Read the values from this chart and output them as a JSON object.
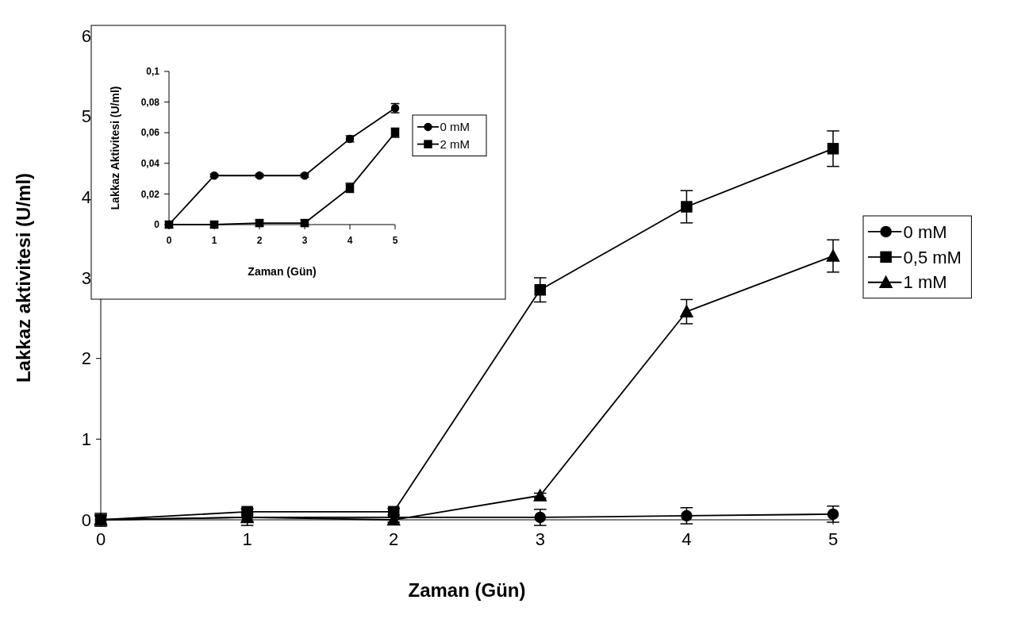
{
  "chart_data": [
    {
      "type": "line",
      "xlabel": "Zaman (Gün)",
      "ylabel": "Lakkaz aktivitesi (U/ml)",
      "x": [
        0,
        1,
        2,
        3,
        4,
        5
      ],
      "xlim": [
        0,
        5
      ],
      "xticks": [
        0,
        1,
        2,
        3,
        4,
        5
      ],
      "ylim": [
        0,
        6
      ],
      "yticks": [
        0,
        1,
        2,
        3,
        4,
        5,
        6
      ],
      "grid": false,
      "legend": "right",
      "line_style": "solid",
      "series": [
        {
          "name": "0 mM",
          "color": "#000000",
          "marker": "circle",
          "values": [
            0,
            0.03,
            null,
            0.03,
            0.05,
            0.07
          ],
          "errors": [
            0.08,
            0.1,
            null,
            0.1,
            0.1,
            0.1
          ]
        },
        {
          "name": "0,5 mM",
          "color": "#000000",
          "marker": "square",
          "values": [
            0,
            0.1,
            0.1,
            2.85,
            3.88,
            4.6
          ],
          "errors": [
            0.06,
            0.04,
            0.04,
            0.15,
            0.2,
            0.22
          ]
        },
        {
          "name": "1 mM",
          "color": "#000000",
          "marker": "triangle",
          "values": [
            0,
            0.03,
            0,
            0.3,
            2.58,
            3.27
          ],
          "errors": [
            0.05,
            0.05,
            0.03,
            0.03,
            0.15,
            0.2
          ]
        }
      ]
    },
    {
      "type": "line",
      "xlabel": "Zaman (Gün)",
      "ylabel": "Lakkaz Aktivitesi (U/ml)",
      "x": [
        0,
        1,
        2,
        3,
        4,
        5
      ],
      "xlim": [
        0,
        5
      ],
      "xticks": [
        0,
        1,
        2,
        3,
        4,
        5
      ],
      "ylim": [
        0,
        0.1
      ],
      "yticks": [
        0,
        {
          "value": 0.02,
          "label": "0,02"
        },
        {
          "value": 0.04,
          "label": "0,04"
        },
        {
          "value": 0.06,
          "label": "0,06"
        },
        {
          "value": 0.08,
          "label": "0,08"
        },
        {
          "value": 0.1,
          "label": "0,1"
        }
      ],
      "grid": false,
      "legend": "right",
      "line_style": "solid",
      "series": [
        {
          "name": "0 mM",
          "color": "#000000",
          "marker": "circle",
          "values": [
            0,
            0.032,
            0.032,
            0.032,
            0.056,
            0.076
          ],
          "errors": [
            null,
            0.001,
            0.001,
            0.001,
            0.002,
            0.003
          ]
        },
        {
          "name": "2 mM",
          "color": "#000000",
          "marker": "square",
          "values": [
            0,
            0,
            0.001,
            0.001,
            0.024,
            0.06
          ],
          "errors": [
            0.002,
            0.002,
            0.002,
            0.002,
            0.003,
            0.003
          ]
        }
      ]
    }
  ]
}
